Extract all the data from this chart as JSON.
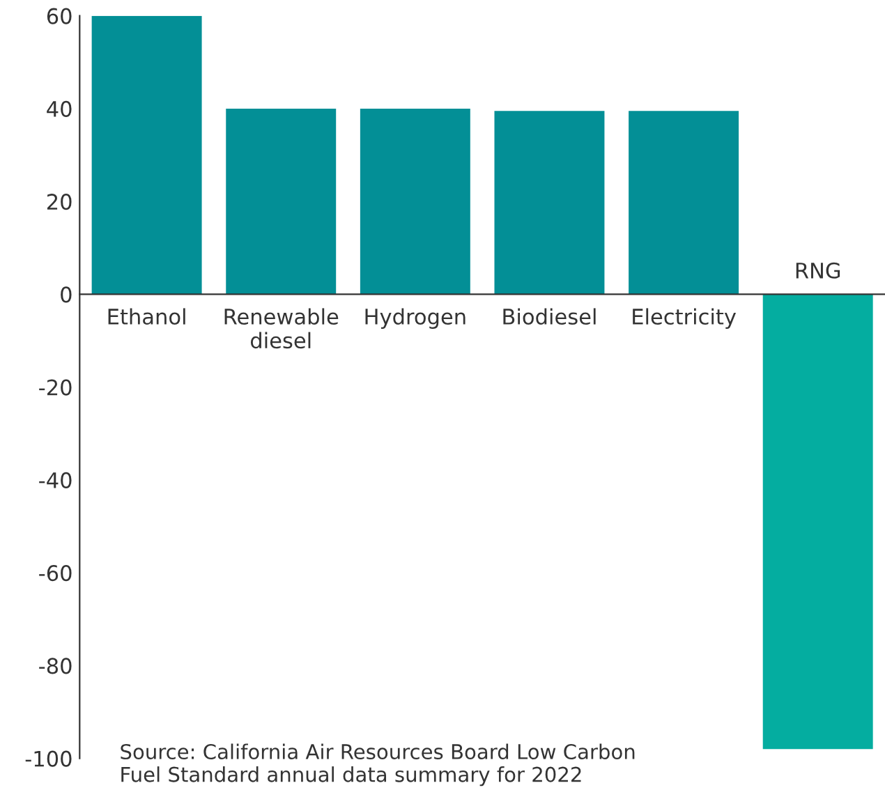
{
  "chart_data": {
    "type": "bar",
    "categories": [
      "Ethanol",
      "Renewable\ndiesel",
      "Hydrogen",
      "Biodiesel",
      "Electricity",
      "RNG"
    ],
    "values": [
      60,
      40,
      40,
      39.5,
      39.5,
      -98
    ],
    "colors": [
      "#038f96",
      "#038f96",
      "#038f96",
      "#038f96",
      "#038f96",
      "#04ada0"
    ],
    "ylim": [
      -100,
      60
    ],
    "yticks": [
      -100,
      -80,
      -60,
      -40,
      -20,
      0,
      20,
      40,
      60
    ],
    "grid": false,
    "legend": false,
    "annotations": [
      "Source: California Air Resources Board Low Carbon\nFuel Standard annual data summary for 2022"
    ]
  }
}
